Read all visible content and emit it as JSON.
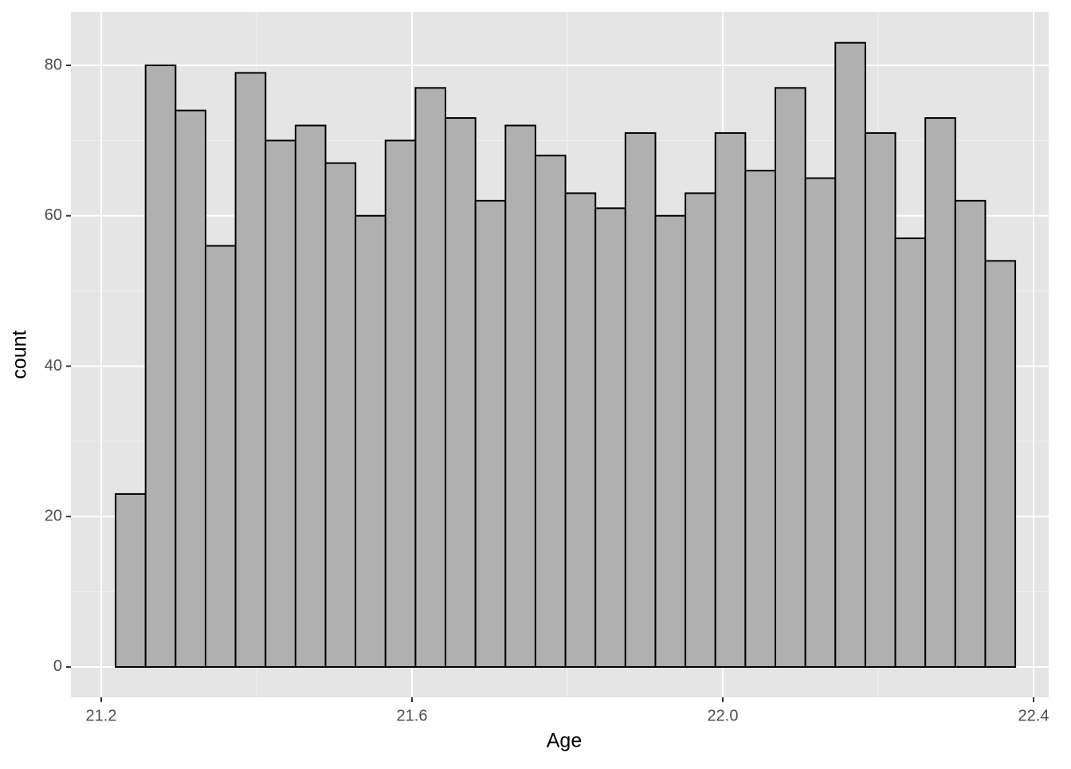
{
  "chart_data": {
    "type": "histogram",
    "x_label": "Age",
    "y_label": "count",
    "bins": [
      21.2185,
      21.2571,
      21.2957,
      21.3343,
      21.3729,
      21.4115,
      21.4501,
      21.4887,
      21.5273,
      21.5659,
      21.6045,
      21.6431,
      21.6817,
      21.7203,
      21.7589,
      21.7975,
      21.8361,
      21.8747,
      21.9133,
      21.9519,
      21.9905,
      22.0291,
      22.0677,
      22.1063,
      22.1449,
      22.1835,
      22.2221,
      22.2607,
      22.2993,
      22.3379,
      22.3765
    ],
    "values": [
      23,
      80,
      74,
      56,
      79,
      70,
      72,
      67,
      60,
      70,
      77,
      73,
      62,
      72,
      68,
      63,
      61,
      71,
      60,
      63,
      71,
      66,
      77,
      65,
      83,
      71,
      57,
      73,
      62,
      54
    ],
    "color": "#b0b0b0",
    "edge_color": "#000000",
    "xlim": [
      21.161,
      22.4195
    ],
    "ylim": [
      -4.03,
      87.1
    ],
    "xticks": [
      21.2,
      21.6,
      {
        "value": 22,
        "label": "22.0"
      },
      22.4
    ],
    "yticks": [
      0,
      20,
      40,
      60,
      80
    ],
    "grid": true
  }
}
